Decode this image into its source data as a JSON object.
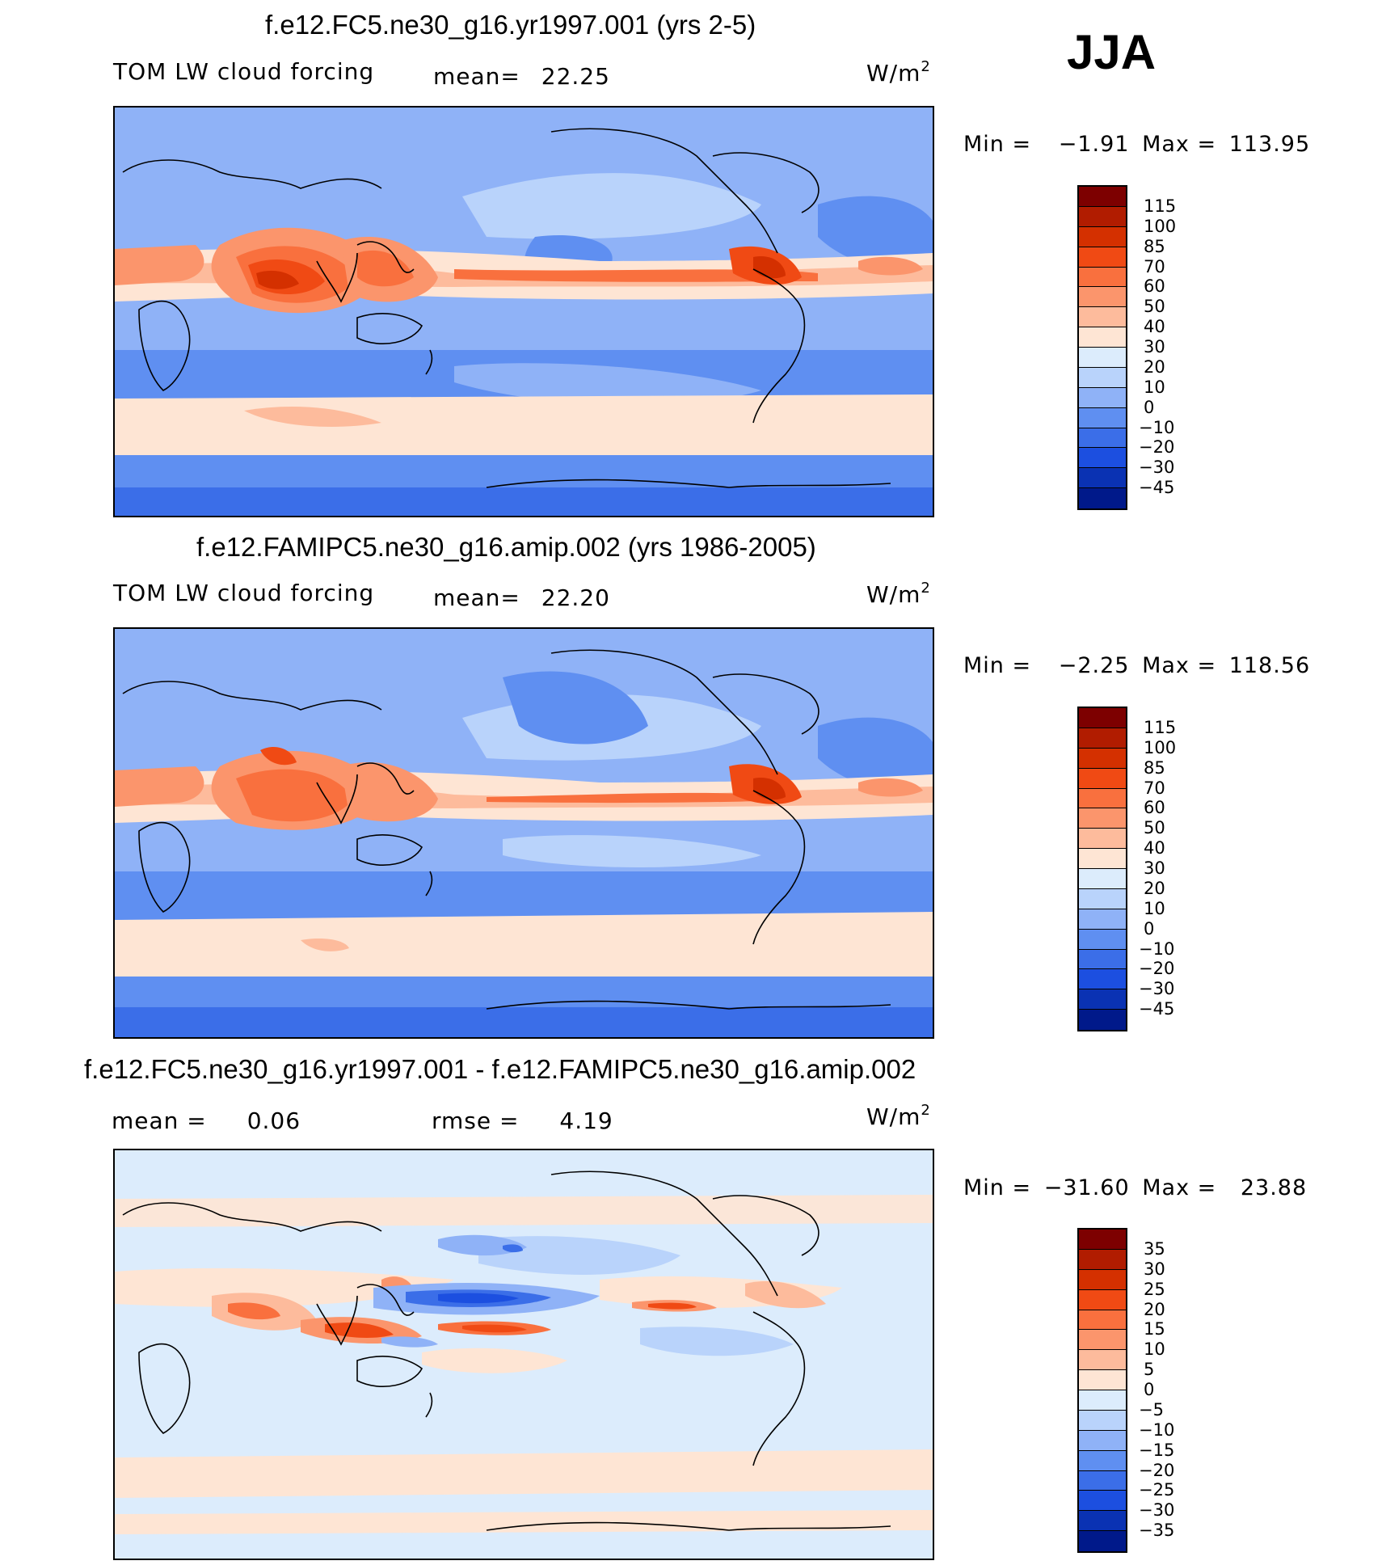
{
  "season_label": "JJA",
  "panels": [
    {
      "title": "f.e12.FC5.ne30_g16.yr1997.001 (yrs 2-5)",
      "left_label": "TOM LW cloud forcing",
      "mean_label": "mean=",
      "mean_value": "22.25",
      "units": "W/m",
      "units_sup": "2",
      "minmax": {
        "min_label": "Min =",
        "min_value": "−1.91",
        "max_label": "Max =",
        "max_value": "113.95"
      }
    },
    {
      "title": "f.e12.FAMIPC5.ne30_g16.amip.002 (yrs 1986-2005)",
      "left_label": "TOM LW cloud forcing",
      "mean_label": "mean=",
      "mean_value": "22.20",
      "units": "W/m",
      "units_sup": "2",
      "minmax": {
        "min_label": "Min =",
        "min_value": "−2.25",
        "max_label": "Max =",
        "max_value": "118.56"
      }
    },
    {
      "title": "f.e12.FC5.ne30_g16.yr1997.001 - f.e12.FAMIPC5.ne30_g16.amip.002",
      "mean_label": "mean =",
      "mean_value": "0.06",
      "rmse_label": "rmse =",
      "rmse_value": "4.19",
      "units": "W/m",
      "units_sup": "2",
      "minmax": {
        "min_label": "Min =",
        "min_value": "−31.60",
        "max_label": "Max =",
        "max_value": "23.88"
      }
    }
  ],
  "colorbars": {
    "forcing": {
      "labels": [
        "115",
        "100",
        "85",
        "70",
        "60",
        "50",
        "40",
        "30",
        "20",
        "10",
        "0",
        "−10",
        "−20",
        "−30",
        "−45"
      ],
      "colors": [
        "#7d0000",
        "#b11c00",
        "#d43000",
        "#f04a14",
        "#f9703e",
        "#fb956c",
        "#fdbb9c",
        "#fee5d4",
        "#dcecfc",
        "#b9d3fb",
        "#8fb2f7",
        "#5f8ff1",
        "#3b6ee8",
        "#1c4fe0",
        "#0a32b3",
        "#00198a"
      ]
    },
    "difference": {
      "labels": [
        "35",
        "30",
        "25",
        "20",
        "15",
        "10",
        "5",
        "0",
        "−5",
        "−10",
        "−15",
        "−20",
        "−25",
        "−30",
        "−35"
      ],
      "colors": [
        "#7d0000",
        "#b11c00",
        "#d43000",
        "#f04a14",
        "#f9703e",
        "#fb956c",
        "#fdbb9c",
        "#fee5d4",
        "#dcecfc",
        "#b9d3fb",
        "#8fb2f7",
        "#5f8ff1",
        "#3b6ee8",
        "#1c4fe0",
        "#0a32b3",
        "#00198a"
      ]
    }
  },
  "chart_data": [
    {
      "type": "heatmap",
      "title": "f.e12.FC5.ne30_g16.yr1997.001 (yrs 2-5)",
      "variable": "TOM LW cloud forcing",
      "units": "W/m2",
      "season": "JJA",
      "mean": 22.25,
      "min": -1.91,
      "max": 113.95,
      "contour_levels": [
        -45,
        -30,
        -20,
        -10,
        0,
        10,
        20,
        30,
        40,
        50,
        60,
        70,
        85,
        100,
        115
      ],
      "projection": "cylindrical equidistant, Pacific-centred (lon 0 to 360)"
    },
    {
      "type": "heatmap",
      "title": "f.e12.FAMIPC5.ne30_g16.amip.002 (yrs 1986-2005)",
      "variable": "TOM LW cloud forcing",
      "units": "W/m2",
      "season": "JJA",
      "mean": 22.2,
      "min": -2.25,
      "max": 118.56,
      "contour_levels": [
        -45,
        -30,
        -20,
        -10,
        0,
        10,
        20,
        30,
        40,
        50,
        60,
        70,
        85,
        100,
        115
      ],
      "projection": "cylindrical equidistant, Pacific-centred (lon 0 to 360)"
    },
    {
      "type": "heatmap",
      "title": "f.e12.FC5.ne30_g16.yr1997.001 - f.e12.FAMIPC5.ne30_g16.amip.002",
      "units": "W/m2",
      "season": "JJA",
      "mean": 0.06,
      "rmse": 4.19,
      "min": -31.6,
      "max": 23.88,
      "contour_levels": [
        -35,
        -30,
        -25,
        -20,
        -15,
        -10,
        -5,
        0,
        5,
        10,
        15,
        20,
        25,
        30,
        35
      ],
      "projection": "cylindrical equidistant, Pacific-centred (lon 0 to 360)"
    }
  ]
}
